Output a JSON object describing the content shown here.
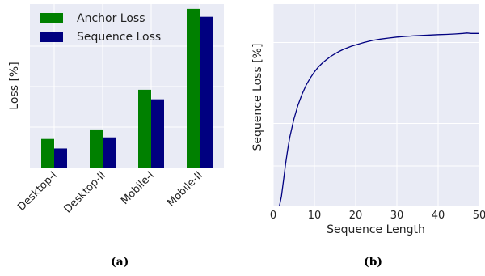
{
  "chart_data": [
    {
      "type": "bar",
      "categories": [
        "Desktop-I",
        "Desktop-II",
        "Mobile-I",
        "Mobile-II"
      ],
      "series": [
        {
          "name": "Anchor Loss",
          "values": [
            0.18,
            0.24,
            0.49,
            1.0
          ],
          "color": "#008000"
        },
        {
          "name": "Sequence Loss",
          "values": [
            0.12,
            0.19,
            0.43,
            0.95
          ],
          "color": "#000080"
        }
      ],
      "ylabel": "Loss [%]",
      "xlabel": "",
      "ylim": [
        0,
        1.03
      ],
      "legend": "top-left",
      "grid": true,
      "y_tick_labels": "hidden",
      "caption": "(a)"
    },
    {
      "type": "line",
      "x": [
        1.5,
        2,
        2.5,
        3,
        3.5,
        4,
        5,
        6,
        7,
        8,
        9,
        10,
        11,
        12,
        13,
        14,
        15,
        16,
        17,
        18,
        19,
        20,
        22,
        24,
        26,
        28,
        30,
        32,
        34,
        36,
        38,
        40,
        42,
        44,
        46,
        47,
        48,
        50
      ],
      "y": [
        0,
        0.05,
        0.13,
        0.21,
        0.28,
        0.34,
        0.43,
        0.5,
        0.555,
        0.6,
        0.635,
        0.665,
        0.69,
        0.71,
        0.727,
        0.742,
        0.755,
        0.766,
        0.776,
        0.784,
        0.792,
        0.798,
        0.81,
        0.82,
        0.827,
        0.832,
        0.837,
        0.84,
        0.843,
        0.845,
        0.847,
        0.849,
        0.85,
        0.852,
        0.855,
        0.857,
        0.855,
        0.855
      ],
      "series_color": "#000080",
      "xlabel": "Sequence Length",
      "ylabel": "Sequence Loss [%]",
      "xlim": [
        0,
        50
      ],
      "ylim": [
        0,
        1.0
      ],
      "x_ticks": [
        0,
        10,
        20,
        30,
        40,
        50
      ],
      "grid": true,
      "y_tick_labels": "hidden",
      "caption": "(b)"
    }
  ]
}
